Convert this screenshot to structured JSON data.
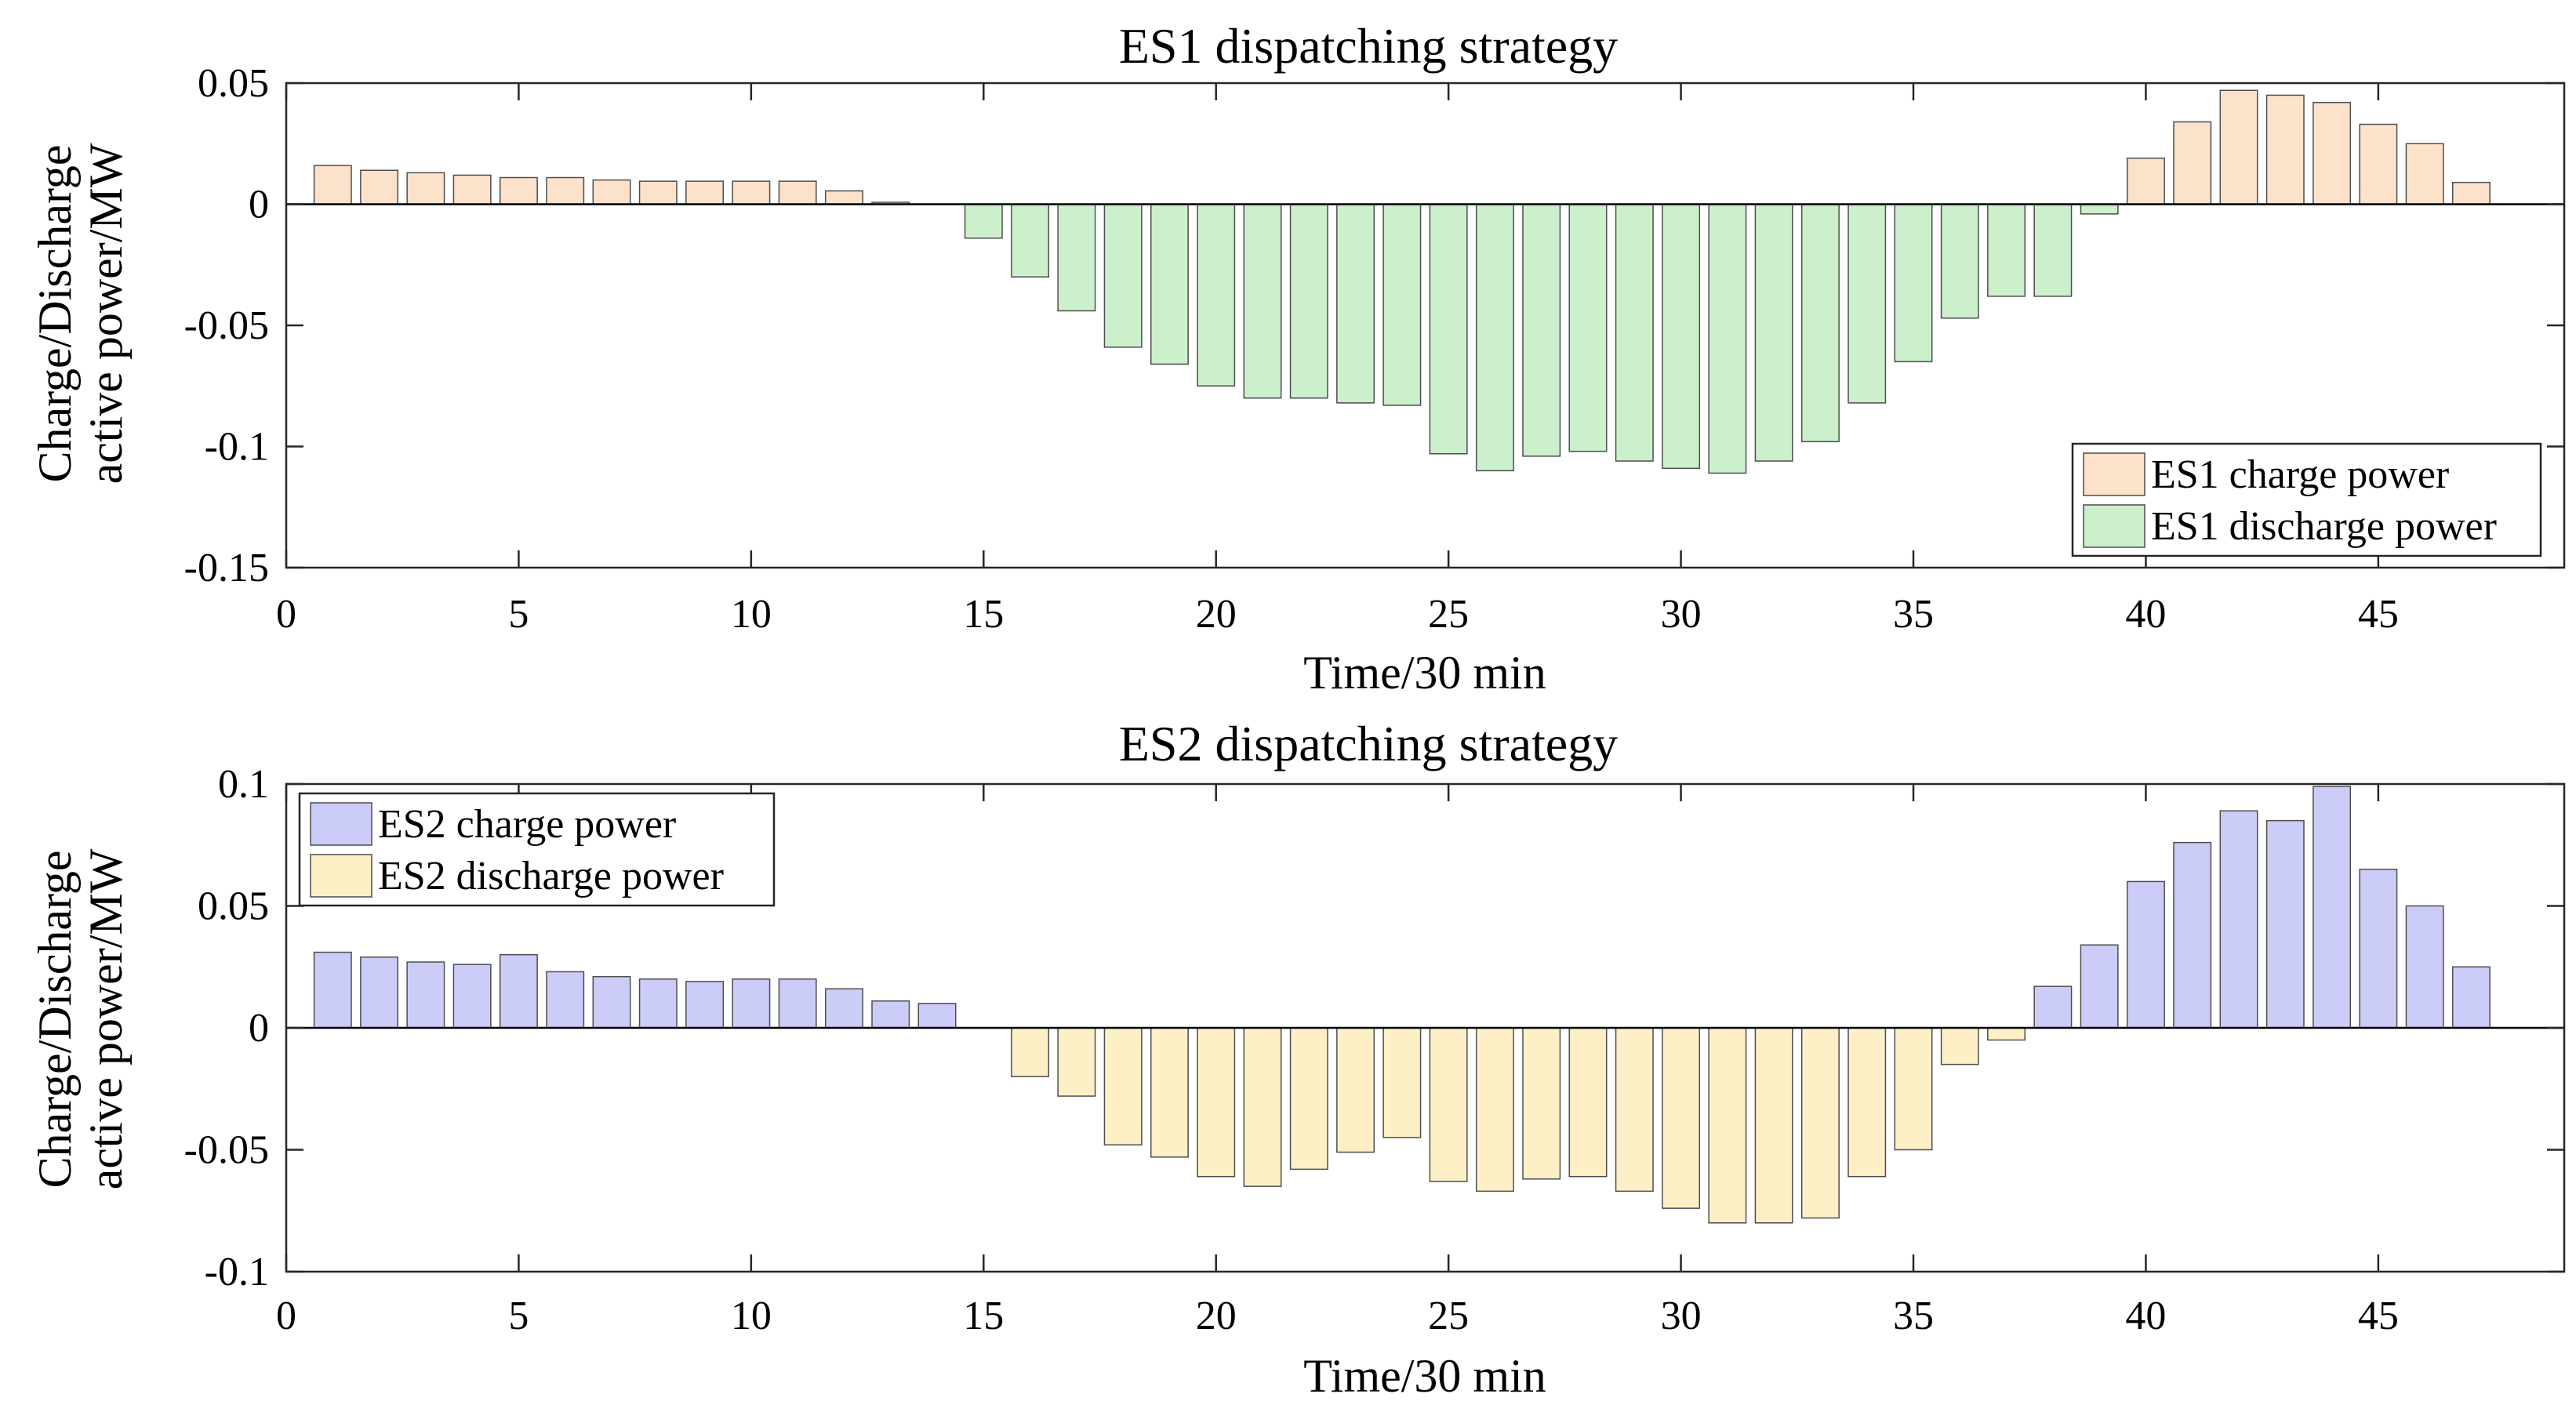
{
  "chart_data": [
    {
      "type": "bar",
      "title": "ES1 dispatching strategy",
      "xlabel": "Time/30 min",
      "ylabel_line1": "Charge/Discharge",
      "ylabel_line2": "active power/MW",
      "xlim": [
        0,
        49
      ],
      "ylim": [
        -0.15,
        0.05
      ],
      "xticks": [
        0,
        5,
        10,
        15,
        20,
        25,
        30,
        35,
        40,
        45
      ],
      "yticks": [
        -0.15,
        -0.1,
        -0.05,
        0,
        0.05
      ],
      "ytick_labels": [
        "-0.15",
        "-0.1",
        "-0.05",
        "0",
        "0.05"
      ],
      "legend_position": "bottom-right",
      "x": [
        1,
        2,
        3,
        4,
        5,
        6,
        7,
        8,
        9,
        10,
        11,
        12,
        13,
        14,
        15,
        16,
        17,
        18,
        19,
        20,
        21,
        22,
        23,
        24,
        25,
        26,
        27,
        28,
        29,
        30,
        31,
        32,
        33,
        34,
        35,
        36,
        37,
        38,
        39,
        40,
        41,
        42,
        43,
        44,
        45,
        46,
        47
      ],
      "series": [
        {
          "name": "ES1 charge power",
          "color": "#FCE2CB",
          "values": [
            0.016,
            0.014,
            0.013,
            0.012,
            0.011,
            0.011,
            0.01,
            0.0095,
            0.0095,
            0.0095,
            0.0095,
            0.0055,
            0.0008,
            0,
            0,
            0,
            0,
            0,
            0,
            0,
            0,
            0,
            0,
            0,
            0,
            0,
            0,
            0,
            0,
            0,
            0,
            0,
            0,
            0,
            0,
            0,
            0,
            0,
            0,
            0.019,
            0.034,
            0.047,
            0.045,
            0.042,
            0.033,
            0.025,
            0.009
          ]
        },
        {
          "name": "ES1 discharge power",
          "color": "#CCF0CC",
          "values": [
            0,
            0,
            0,
            0,
            0,
            0,
            0,
            0,
            0,
            0,
            0,
            0,
            0,
            0,
            -0.014,
            -0.03,
            -0.044,
            -0.059,
            -0.066,
            -0.075,
            -0.08,
            -0.08,
            -0.082,
            -0.083,
            -0.103,
            -0.11,
            -0.104,
            -0.102,
            -0.106,
            -0.109,
            -0.111,
            -0.106,
            -0.098,
            -0.082,
            -0.065,
            -0.047,
            -0.038,
            -0.038,
            -0.004,
            0,
            0,
            0,
            0,
            0,
            0,
            0,
            0
          ]
        }
      ]
    },
    {
      "type": "bar",
      "title": "ES2 dispatching strategy",
      "xlabel": "Time/30 min",
      "ylabel_line1": "Charge/Discharge",
      "ylabel_line2": "active power/MW",
      "xlim": [
        0,
        49
      ],
      "ylim": [
        -0.1,
        0.1
      ],
      "xticks": [
        0,
        5,
        10,
        15,
        20,
        25,
        30,
        35,
        40,
        45
      ],
      "yticks": [
        -0.1,
        -0.05,
        0,
        0.05,
        0.1
      ],
      "ytick_labels": [
        "-0.1",
        "-0.05",
        "0",
        "0.05",
        "0.1"
      ],
      "legend_position": "top-left",
      "x": [
        1,
        2,
        3,
        4,
        5,
        6,
        7,
        8,
        9,
        10,
        11,
        12,
        13,
        14,
        15,
        16,
        17,
        18,
        19,
        20,
        21,
        22,
        23,
        24,
        25,
        26,
        27,
        28,
        29,
        30,
        31,
        32,
        33,
        34,
        35,
        36,
        37,
        38,
        39,
        40,
        41,
        42,
        43,
        44,
        45,
        46,
        47
      ],
      "series": [
        {
          "name": "ES2 charge power",
          "color": "#CCCCF8",
          "values": [
            0.031,
            0.029,
            0.027,
            0.026,
            0.03,
            0.023,
            0.021,
            0.02,
            0.019,
            0.02,
            0.02,
            0.016,
            0.011,
            0.01,
            0,
            0,
            0,
            0,
            0,
            0,
            0,
            0,
            0,
            0,
            0,
            0,
            0,
            0,
            0,
            0,
            0,
            0,
            0,
            0,
            0,
            0,
            0,
            0.017,
            0.034,
            0.06,
            0.076,
            0.089,
            0.085,
            0.099,
            0.065,
            0.05,
            0.025
          ]
        },
        {
          "name": "ES2 discharge power",
          "color": "#FDF0C6",
          "values": [
            0,
            0,
            0,
            0,
            0,
            0,
            0,
            0,
            0,
            0,
            0,
            0,
            0,
            0,
            0,
            -0.02,
            -0.028,
            -0.048,
            -0.053,
            -0.061,
            -0.065,
            -0.058,
            -0.051,
            -0.045,
            -0.063,
            -0.067,
            -0.062,
            -0.061,
            -0.067,
            -0.074,
            -0.08,
            -0.08,
            -0.078,
            -0.061,
            -0.05,
            -0.015,
            -0.005,
            0,
            0,
            0,
            0,
            0,
            0,
            0,
            0,
            0,
            0
          ]
        }
      ]
    }
  ]
}
